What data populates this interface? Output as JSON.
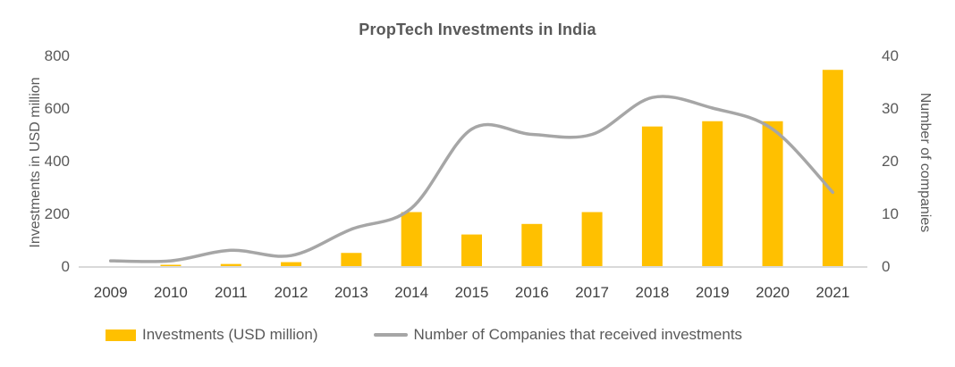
{
  "title": "PropTech Investments in India",
  "colors": {
    "bar": "#FFC000",
    "line": "#A6A6A6",
    "title_text": "#595959",
    "tick_text": "#595959",
    "x_label_text": "#404040",
    "axis_title_text": "#595959",
    "legend_text": "#595959",
    "axis_line": "#D9D9D9",
    "background": "#FFFFFF"
  },
  "legend": {
    "items": [
      {
        "label": "Investments (USD million)",
        "swatch": "bar-swatch"
      },
      {
        "label": "Number of Companies that received investments",
        "swatch": "line-swatch"
      }
    ]
  },
  "chart_data": {
    "type": "combo-bar-line",
    "title": "PropTech Investments in India",
    "categories": [
      "2009",
      "2010",
      "2011",
      "2012",
      "2013",
      "2014",
      "2015",
      "2016",
      "2017",
      "2018",
      "2019",
      "2020",
      "2021"
    ],
    "series": [
      {
        "name": "Investments (USD million)",
        "type": "bar",
        "axis": "left",
        "color": "#FFC000",
        "values": [
          0,
          5,
          8,
          15,
          50,
          205,
          120,
          160,
          205,
          530,
          550,
          550,
          745
        ]
      },
      {
        "name": "Number of Companies that received investments",
        "type": "line",
        "axis": "right",
        "color": "#A6A6A6",
        "values": [
          1,
          1,
          3,
          2,
          7,
          11,
          26,
          25,
          25,
          32,
          30,
          26,
          14
        ]
      }
    ],
    "left_axis": {
      "label": "Investments in USD million",
      "min": 0,
      "max": 800,
      "step": 200,
      "ticks": [
        0,
        200,
        400,
        600,
        800
      ]
    },
    "right_axis": {
      "label": "Number of companies",
      "min": 0,
      "max": 40,
      "step": 10,
      "ticks": [
        0,
        10,
        20,
        30,
        40
      ]
    },
    "grid": false,
    "legend_position": "bottom",
    "line_smoothing": true
  }
}
